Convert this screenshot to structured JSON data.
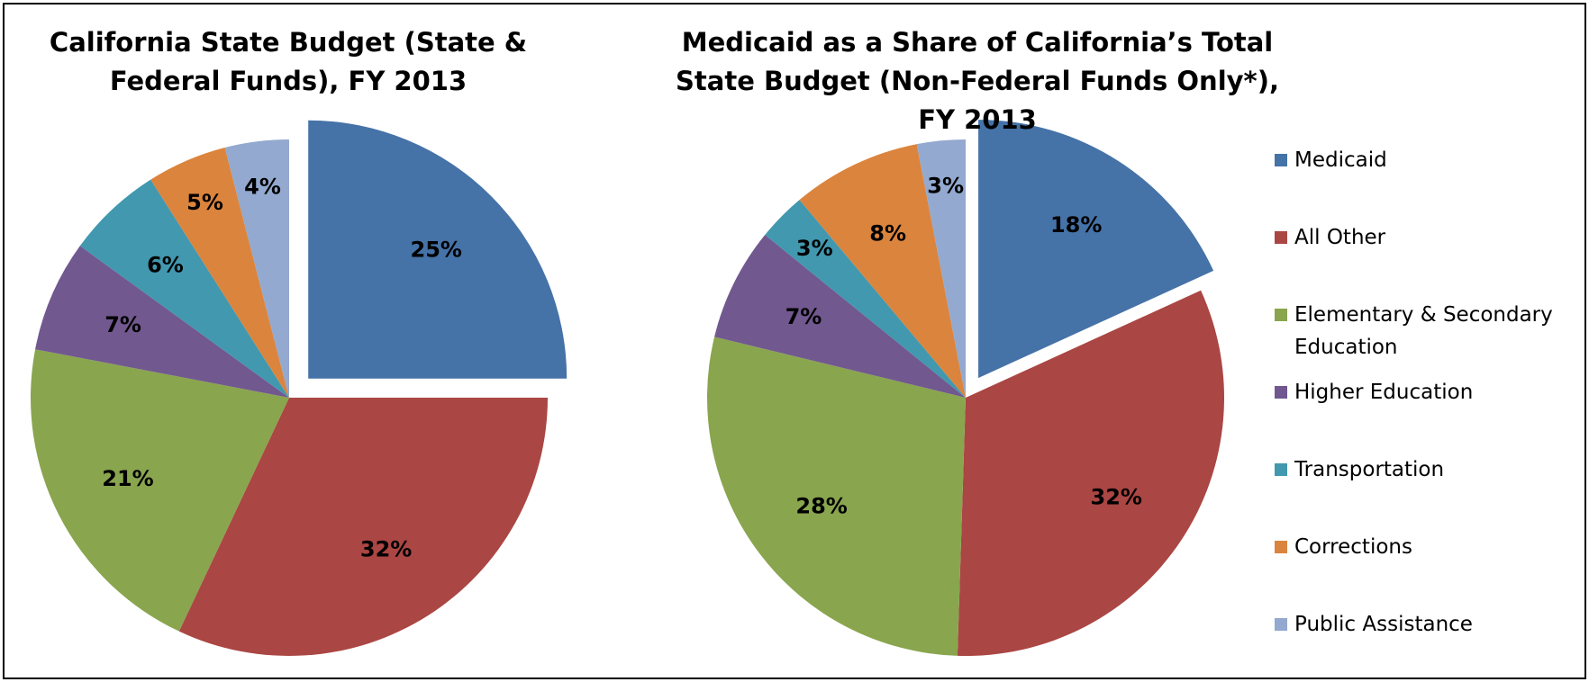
{
  "chart_data": [
    {
      "type": "pie",
      "title": "California State Budget (State & Federal Funds), FY 2013",
      "values": [
        25,
        32,
        21,
        7,
        6,
        5,
        4
      ],
      "value_labels": [
        "25%",
        "32%",
        "21%",
        "7%",
        "6%",
        "5%",
        "4%"
      ],
      "colors": [
        "#4572a7",
        "#aa4643",
        "#89a54e",
        "#71588f",
        "#4198af",
        "#db843d",
        "#93a9cf"
      ]
    },
    {
      "type": "pie",
      "title": "Medicaid as a Share of California’s Total State Budget (Non-Federal Funds Only*), FY 2013",
      "categories": [
        "Medicaid",
        "All Other",
        "Elementary & Secondary Education",
        "Higher Education",
        "Transportation",
        "Corrections",
        "Public Assistance"
      ],
      "values": [
        18,
        32,
        28,
        7,
        3,
        8,
        3
      ],
      "value_labels": [
        "18%",
        "32%",
        "28%",
        "7%",
        "3%",
        "8%",
        "3%"
      ],
      "colors": [
        "#4572a7",
        "#aa4643",
        "#89a54e",
        "#71588f",
        "#4198af",
        "#db843d",
        "#93a9cf"
      ]
    }
  ]
}
